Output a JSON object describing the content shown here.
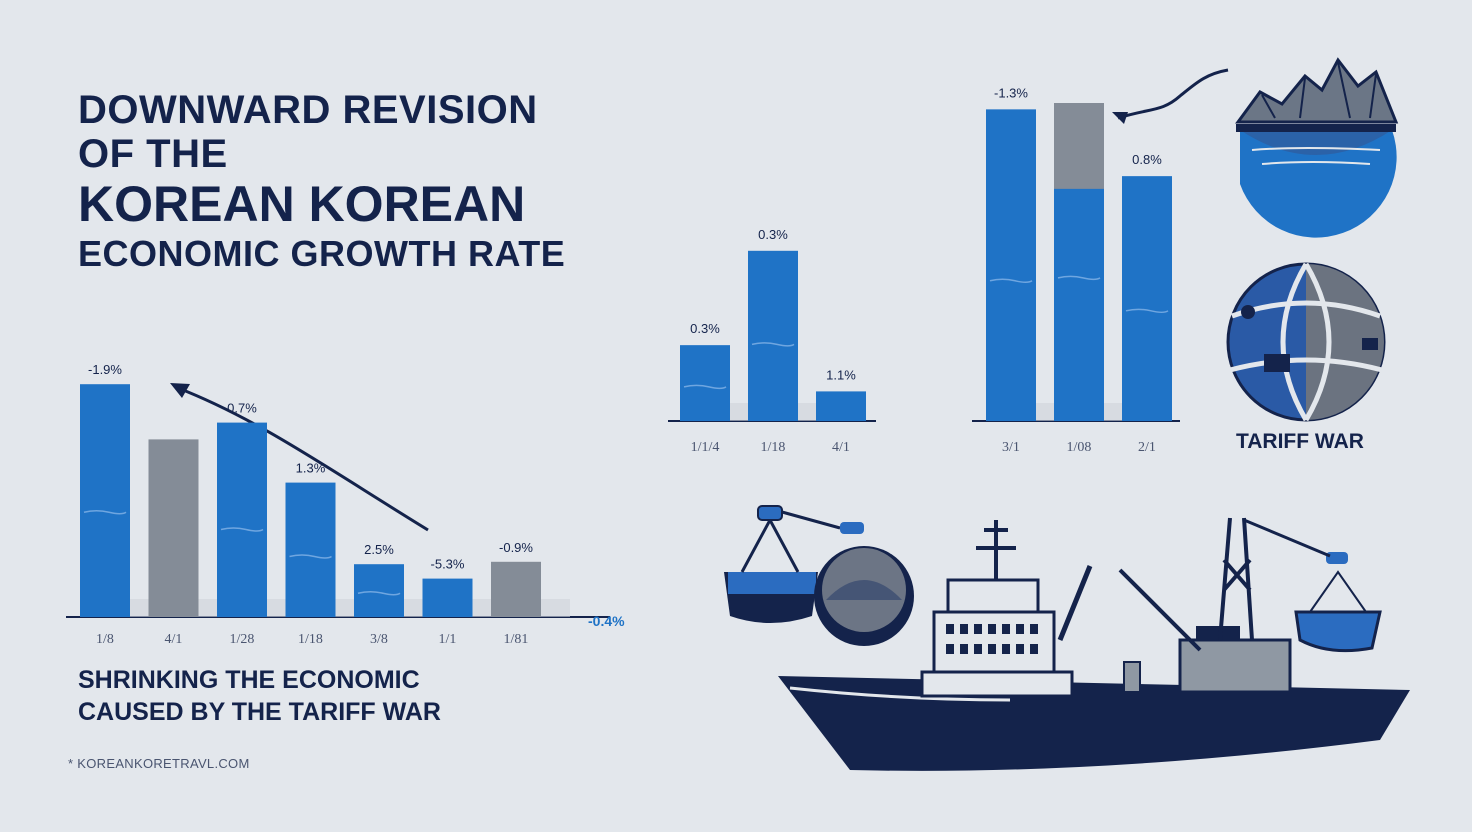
{
  "title": {
    "line1": "DOWNWARD REVISION",
    "line2": "OF THE",
    "line3": "KOREAN KOREAN",
    "line4": "ECONOMIC GROWTH RATE"
  },
  "subtitle": {
    "line1": "SHRINKING THE ECONOMIC",
    "line2": "CAUSED BY THE TARIFF WAR"
  },
  "source": "* KOREANKOREТRAVL.COM",
  "tariff_label": "TARIFF WAR",
  "colors": {
    "background": "#e3e7ec",
    "navy": "#14234b",
    "blue": "#1f73c6",
    "gray": "#848c97"
  },
  "icons": [
    "mountain-sea-icon",
    "globe-icon",
    "cargo-ship-icon",
    "cargo-basket-icon",
    "trend-arrow-icon"
  ],
  "chart_data": [
    {
      "type": "bar",
      "categories": [
        "1/8",
        "4/1",
        "1/28",
        "1/18",
        "3/8",
        "1/1",
        "1/81"
      ],
      "values": [
        -1.9,
        null,
        0.7,
        1.3,
        2.5,
        -5.3,
        -0.9
      ],
      "value_labels": [
        "-1.9%",
        "",
        "0.7%",
        "1.3%",
        "2.5%",
        "-5.3%",
        "-0.9%"
      ],
      "bar_colors": [
        "blue",
        "gray",
        "blue",
        "blue",
        "blue",
        "blue",
        "gray"
      ],
      "level": [
        0.97,
        0.74,
        0.81,
        0.56,
        0.22,
        0.16,
        0.23
      ],
      "extra_label": "-0.4%"
    },
    {
      "type": "bar",
      "categories": [
        "1/1/4",
        "1/18",
        "4/1"
      ],
      "values": [
        0.3,
        0.3,
        1.1
      ],
      "value_labels": [
        "0.3%",
        "0.3%",
        "1.1%"
      ],
      "bar_colors": [
        "blue",
        "blue",
        "blue"
      ],
      "level": [
        0.41,
        0.92,
        0.16
      ]
    },
    {
      "type": "bar",
      "categories": [
        "3/1",
        "1/08",
        "2/1"
      ],
      "values": [
        -1.3,
        null,
        0.8
      ],
      "value_labels": [
        "-1.3%",
        "",
        "0.8%"
      ],
      "bar_colors": [
        "blue",
        "gray-top",
        "blue"
      ],
      "level": [
        0.98,
        1.0,
        0.77
      ]
    }
  ]
}
